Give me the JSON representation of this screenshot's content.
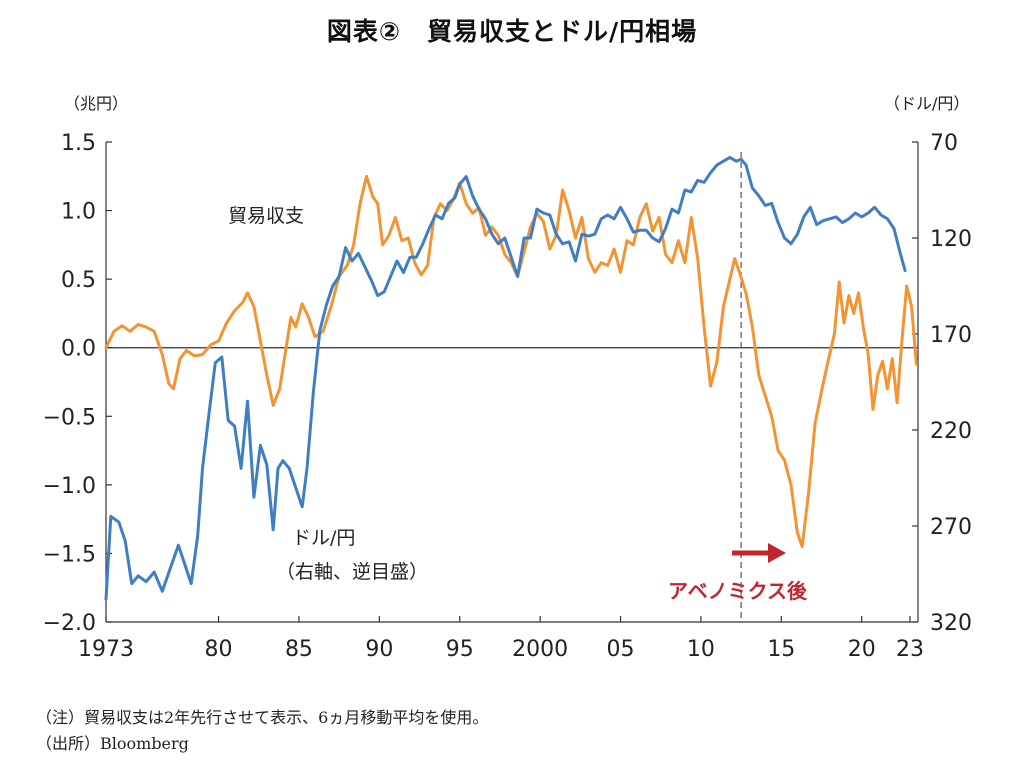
{
  "title": "図表②　貿易収支とドル/円相場",
  "left_unit": "（兆円）",
  "right_unit": "（ドル/円）",
  "notes": {
    "note1": "（注）貿易収支は2年先行させて表示、6ヵ月移動平均を使用。",
    "note2": "（出所）Bloomberg"
  },
  "colors": {
    "trade_balance": "#f29433",
    "usd_jpy": "#3f7ec3",
    "arrow": "#c0262b"
  },
  "chart_data": {
    "type": "line",
    "x_ticks": [
      {
        "x": 1973,
        "label": "1973"
      },
      {
        "x": 1980,
        "label": "80"
      },
      {
        "x": 1985,
        "label": "85"
      },
      {
        "x": 1990,
        "label": "90"
      },
      {
        "x": 1995,
        "label": "95"
      },
      {
        "x": 2000,
        "label": "2000"
      },
      {
        "x": 2005,
        "label": "05"
      },
      {
        "x": 2010,
        "label": "10"
      },
      {
        "x": 2015,
        "label": "15"
      },
      {
        "x": 2020,
        "label": "20"
      },
      {
        "x": 2023,
        "label": "23"
      }
    ],
    "xlim": [
      1973,
      2023.5
    ],
    "left_axis": {
      "ylim": [
        -2.0,
        1.5
      ],
      "ticks": [
        {
          "v": 1.5,
          "label": "1.5"
        },
        {
          "v": 1.0,
          "label": "1.0"
        },
        {
          "v": 0.5,
          "label": "0.5"
        },
        {
          "v": 0.0,
          "label": "0.0"
        },
        {
          "v": -0.5,
          "label": "−0.5"
        },
        {
          "v": -1.0,
          "label": "−1.0"
        },
        {
          "v": -1.5,
          "label": "−1.5"
        },
        {
          "v": -2.0,
          "label": "−2.0"
        }
      ]
    },
    "right_axis": {
      "inverted": true,
      "ylim": [
        70,
        320
      ],
      "ticks": [
        {
          "v": 70,
          "label": "70"
        },
        {
          "v": 120,
          "label": "120"
        },
        {
          "v": 170,
          "label": "170"
        },
        {
          "v": 220,
          "label": "220"
        },
        {
          "v": 270,
          "label": "270"
        },
        {
          "v": 320,
          "label": "320"
        }
      ]
    },
    "zero_line": 0.0,
    "vline": {
      "x": 2012.5,
      "dashed": true
    },
    "series": [
      {
        "name": "貿易収支",
        "axis": "left",
        "points": [
          [
            1973.0,
            0.0
          ],
          [
            1973.5,
            0.12
          ],
          [
            1974.0,
            0.16
          ],
          [
            1974.5,
            0.12
          ],
          [
            1975.0,
            0.17
          ],
          [
            1975.5,
            0.15
          ],
          [
            1976.0,
            0.12
          ],
          [
            1976.5,
            -0.05
          ],
          [
            1976.9,
            -0.26
          ],
          [
            1977.2,
            -0.3
          ],
          [
            1977.6,
            -0.08
          ],
          [
            1978.0,
            -0.02
          ],
          [
            1978.5,
            -0.06
          ],
          [
            1979.0,
            -0.05
          ],
          [
            1979.5,
            0.02
          ],
          [
            1980.0,
            0.05
          ],
          [
            1980.5,
            0.18
          ],
          [
            1981.0,
            0.27
          ],
          [
            1981.5,
            0.33
          ],
          [
            1981.8,
            0.4
          ],
          [
            1982.2,
            0.3
          ],
          [
            1982.6,
            0.05
          ],
          [
            1983.0,
            -0.2
          ],
          [
            1983.4,
            -0.42
          ],
          [
            1983.8,
            -0.3
          ],
          [
            1984.2,
            0.0
          ],
          [
            1984.5,
            0.22
          ],
          [
            1984.8,
            0.15
          ],
          [
            1985.2,
            0.32
          ],
          [
            1985.6,
            0.22
          ],
          [
            1986.0,
            0.08
          ],
          [
            1986.5,
            0.12
          ],
          [
            1987.0,
            0.3
          ],
          [
            1987.5,
            0.52
          ],
          [
            1988.0,
            0.6
          ],
          [
            1988.4,
            0.75
          ],
          [
            1988.8,
            1.05
          ],
          [
            1989.2,
            1.25
          ],
          [
            1989.6,
            1.1
          ],
          [
            1989.9,
            1.05
          ],
          [
            1990.2,
            0.75
          ],
          [
            1990.6,
            0.82
          ],
          [
            1991.0,
            0.95
          ],
          [
            1991.4,
            0.78
          ],
          [
            1991.8,
            0.8
          ],
          [
            1992.2,
            0.62
          ],
          [
            1992.6,
            0.53
          ],
          [
            1993.0,
            0.6
          ],
          [
            1993.4,
            0.95
          ],
          [
            1993.8,
            1.05
          ],
          [
            1994.2,
            1.0
          ],
          [
            1994.6,
            1.08
          ],
          [
            1995.0,
            1.2
          ],
          [
            1995.4,
            1.05
          ],
          [
            1995.8,
            0.98
          ],
          [
            1996.2,
            1.02
          ],
          [
            1996.6,
            0.82
          ],
          [
            1997.0,
            0.88
          ],
          [
            1997.4,
            0.82
          ],
          [
            1997.8,
            0.68
          ],
          [
            1998.2,
            0.62
          ],
          [
            1998.6,
            0.52
          ],
          [
            1999.0,
            0.7
          ],
          [
            1999.4,
            0.88
          ],
          [
            1999.8,
            0.98
          ],
          [
            2000.2,
            0.92
          ],
          [
            2000.6,
            0.72
          ],
          [
            2001.0,
            0.82
          ],
          [
            2001.4,
            1.15
          ],
          [
            2001.8,
            1.0
          ],
          [
            2002.2,
            0.8
          ],
          [
            2002.6,
            0.95
          ],
          [
            2003.0,
            0.65
          ],
          [
            2003.4,
            0.55
          ],
          [
            2003.8,
            0.62
          ],
          [
            2004.2,
            0.6
          ],
          [
            2004.6,
            0.72
          ],
          [
            2005.0,
            0.55
          ],
          [
            2005.4,
            0.78
          ],
          [
            2005.8,
            0.75
          ],
          [
            2006.2,
            0.95
          ],
          [
            2006.6,
            1.05
          ],
          [
            2007.0,
            0.85
          ],
          [
            2007.4,
            0.95
          ],
          [
            2007.8,
            0.68
          ],
          [
            2008.2,
            0.62
          ],
          [
            2008.6,
            0.78
          ],
          [
            2009.0,
            0.62
          ],
          [
            2009.4,
            0.95
          ],
          [
            2009.8,
            0.65
          ],
          [
            2010.2,
            0.15
          ],
          [
            2010.6,
            -0.28
          ],
          [
            2011.0,
            -0.1
          ],
          [
            2011.4,
            0.3
          ],
          [
            2011.8,
            0.5
          ],
          [
            2012.1,
            0.65
          ],
          [
            2012.4,
            0.55
          ],
          [
            2012.8,
            0.4
          ],
          [
            2013.2,
            0.15
          ],
          [
            2013.6,
            -0.2
          ],
          [
            2014.0,
            -0.35
          ],
          [
            2014.4,
            -0.5
          ],
          [
            2014.8,
            -0.75
          ],
          [
            2015.2,
            -0.82
          ],
          [
            2015.6,
            -1.0
          ],
          [
            2016.0,
            -1.35
          ],
          [
            2016.3,
            -1.45
          ],
          [
            2016.7,
            -1.05
          ],
          [
            2017.1,
            -0.55
          ],
          [
            2017.5,
            -0.32
          ],
          [
            2017.9,
            -0.1
          ],
          [
            2018.3,
            0.1
          ],
          [
            2018.6,
            0.48
          ],
          [
            2018.9,
            0.18
          ],
          [
            2019.2,
            0.38
          ],
          [
            2019.5,
            0.25
          ],
          [
            2019.8,
            0.4
          ],
          [
            2020.1,
            0.15
          ],
          [
            2020.4,
            -0.05
          ],
          [
            2020.7,
            -0.45
          ],
          [
            2021.0,
            -0.2
          ],
          [
            2021.3,
            -0.1
          ],
          [
            2021.6,
            -0.3
          ],
          [
            2021.9,
            -0.08
          ],
          [
            2022.2,
            -0.4
          ],
          [
            2022.5,
            0.05
          ],
          [
            2022.8,
            0.45
          ],
          [
            2023.1,
            0.3
          ],
          [
            2023.4,
            -0.12
          ]
        ]
      },
      {
        "name": "ドル/円",
        "axis": "right",
        "points": [
          [
            1973.0,
            308
          ],
          [
            1973.3,
            265
          ],
          [
            1973.8,
            268
          ],
          [
            1974.2,
            278
          ],
          [
            1974.6,
            300
          ],
          [
            1975.0,
            296
          ],
          [
            1975.5,
            299
          ],
          [
            1976.0,
            294
          ],
          [
            1976.5,
            304
          ],
          [
            1977.0,
            292
          ],
          [
            1977.5,
            280
          ],
          [
            1977.9,
            290
          ],
          [
            1978.3,
            300
          ],
          [
            1978.7,
            275
          ],
          [
            1979.0,
            240
          ],
          [
            1979.4,
            212
          ],
          [
            1979.8,
            185
          ],
          [
            1980.2,
            182
          ],
          [
            1980.6,
            215
          ],
          [
            1981.0,
            218
          ],
          [
            1981.4,
            240
          ],
          [
            1981.8,
            205
          ],
          [
            1982.2,
            255
          ],
          [
            1982.6,
            228
          ],
          [
            1983.0,
            238
          ],
          [
            1983.4,
            272
          ],
          [
            1983.7,
            240
          ],
          [
            1984.0,
            236
          ],
          [
            1984.4,
            240
          ],
          [
            1984.8,
            250
          ],
          [
            1985.2,
            260
          ],
          [
            1985.5,
            240
          ],
          [
            1985.9,
            200
          ],
          [
            1986.3,
            168
          ],
          [
            1986.7,
            155
          ],
          [
            1987.1,
            145
          ],
          [
            1987.5,
            140
          ],
          [
            1987.9,
            125
          ],
          [
            1988.3,
            132
          ],
          [
            1988.7,
            128
          ],
          [
            1989.1,
            135
          ],
          [
            1989.5,
            142
          ],
          [
            1989.9,
            150
          ],
          [
            1990.3,
            148
          ],
          [
            1990.7,
            140
          ],
          [
            1991.1,
            132
          ],
          [
            1991.5,
            138
          ],
          [
            1991.9,
            130
          ],
          [
            1992.3,
            130
          ],
          [
            1992.7,
            123
          ],
          [
            1993.1,
            115
          ],
          [
            1993.5,
            108
          ],
          [
            1993.9,
            110
          ],
          [
            1994.3,
            102
          ],
          [
            1994.7,
            99
          ],
          [
            1995.0,
            92
          ],
          [
            1995.4,
            88
          ],
          [
            1995.8,
            98
          ],
          [
            1996.2,
            105
          ],
          [
            1996.6,
            110
          ],
          [
            1997.0,
            118
          ],
          [
            1997.4,
            123
          ],
          [
            1997.8,
            120
          ],
          [
            1998.2,
            130
          ],
          [
            1998.6,
            140
          ],
          [
            1999.0,
            120
          ],
          [
            1999.4,
            120
          ],
          [
            1999.8,
            105
          ],
          [
            2000.2,
            107
          ],
          [
            2000.6,
            108
          ],
          [
            2001.0,
            118
          ],
          [
            2001.4,
            123
          ],
          [
            2001.8,
            122
          ],
          [
            2002.2,
            132
          ],
          [
            2002.6,
            118
          ],
          [
            2003.0,
            119
          ],
          [
            2003.4,
            118
          ],
          [
            2003.8,
            110
          ],
          [
            2004.2,
            108
          ],
          [
            2004.6,
            110
          ],
          [
            2005.0,
            104
          ],
          [
            2005.4,
            110
          ],
          [
            2005.8,
            117
          ],
          [
            2006.2,
            116
          ],
          [
            2006.6,
            116
          ],
          [
            2007.0,
            120
          ],
          [
            2007.4,
            122
          ],
          [
            2007.8,
            115
          ],
          [
            2008.2,
            105
          ],
          [
            2008.6,
            107
          ],
          [
            2009.0,
            95
          ],
          [
            2009.4,
            96
          ],
          [
            2009.8,
            90
          ],
          [
            2010.2,
            91
          ],
          [
            2010.6,
            86
          ],
          [
            2011.0,
            82
          ],
          [
            2011.4,
            80
          ],
          [
            2011.8,
            78
          ],
          [
            2012.2,
            80
          ],
          [
            2012.5,
            79
          ],
          [
            2012.8,
            82
          ],
          [
            2013.2,
            94
          ],
          [
            2013.6,
            98
          ],
          [
            2014.0,
            103
          ],
          [
            2014.4,
            102
          ],
          [
            2014.8,
            112
          ],
          [
            2015.2,
            120
          ],
          [
            2015.6,
            123
          ],
          [
            2016.0,
            118
          ],
          [
            2016.4,
            109
          ],
          [
            2016.8,
            104
          ],
          [
            2017.2,
            113
          ],
          [
            2017.6,
            111
          ],
          [
            2018.0,
            110
          ],
          [
            2018.4,
            109
          ],
          [
            2018.8,
            112
          ],
          [
            2019.2,
            110
          ],
          [
            2019.6,
            107
          ],
          [
            2020.0,
            109
          ],
          [
            2020.4,
            107
          ],
          [
            2020.8,
            104
          ],
          [
            2021.2,
            108
          ],
          [
            2021.6,
            110
          ],
          [
            2022.0,
            115
          ],
          [
            2022.4,
            128
          ],
          [
            2022.7,
            137
          ]
        ]
      }
    ],
    "annotations": {
      "trade_label": "貿易収支",
      "fx_label_1": "ドル/円",
      "fx_label_2": "（右軸、逆目盛）",
      "abenomics": "アベノミクス後"
    }
  }
}
